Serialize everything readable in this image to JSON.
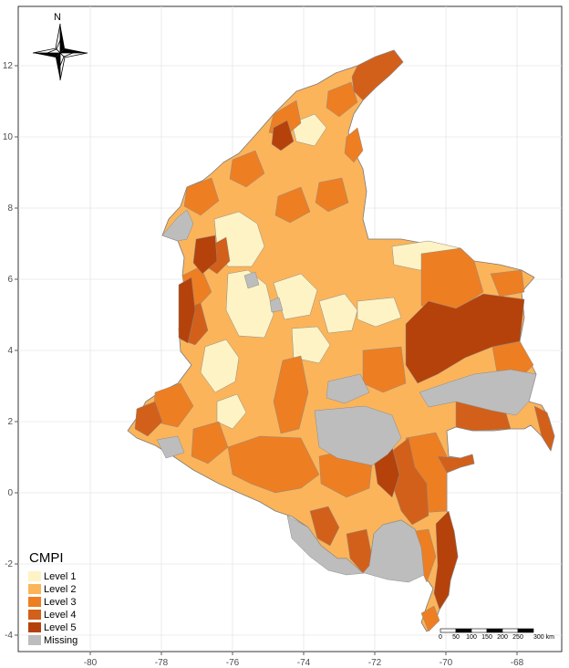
{
  "legend": {
    "title": "CMPI",
    "items": [
      {
        "label": "Level 1",
        "color": "#FEF3C4"
      },
      {
        "label": "Level 2",
        "color": "#FBB45A"
      },
      {
        "label": "Level 3",
        "color": "#EE7E22"
      },
      {
        "label": "Level 4",
        "color": "#D2601A"
      },
      {
        "label": "Level 5",
        "color": "#B5420B"
      },
      {
        "label": "Missing",
        "color": "#BDBDBD"
      }
    ]
  },
  "axes": {
    "x_ticks": [
      "-80",
      "-78",
      "-76",
      "-74",
      "-72",
      "-70",
      "-68"
    ],
    "y_ticks": [
      "12",
      "10",
      "8",
      "6",
      "4",
      "2",
      "0",
      "-2",
      "-4"
    ]
  },
  "north_arrow": {
    "label": "N"
  },
  "scale_bar": {
    "labels": [
      "0",
      "50",
      "100",
      "150",
      "200",
      "250",
      "300 km"
    ]
  }
}
